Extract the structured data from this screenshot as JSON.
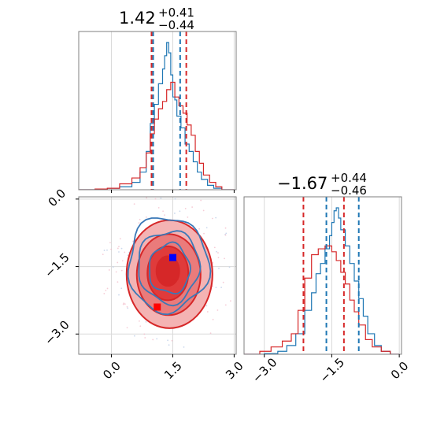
{
  "chart_data": [
    {
      "type": "histogram",
      "panel": "marginal-x",
      "title": {
        "value": "1.42",
        "plus": "+0.41",
        "minus": "−0.44"
      },
      "xlim": [
        -0.8,
        3.05
      ],
      "series": [
        {
          "color": "#1f77b4",
          "bins": [
            -0.8,
            -0.4,
            -0.1,
            0.2,
            0.5,
            0.7,
            0.85,
            0.95,
            1.05,
            1.15,
            1.25,
            1.3,
            1.35,
            1.4,
            1.45,
            1.5,
            1.55,
            1.6,
            1.7,
            1.8,
            1.9,
            2.0,
            2.1,
            2.2,
            2.35,
            2.5,
            2.7,
            3.0
          ],
          "counts": [
            0.0,
            0.005,
            0.01,
            0.02,
            0.05,
            0.12,
            0.26,
            0.45,
            0.58,
            0.72,
            0.82,
            0.91,
            1.0,
            0.93,
            0.78,
            0.63,
            0.61,
            0.5,
            0.42,
            0.31,
            0.26,
            0.19,
            0.12,
            0.07,
            0.03,
            0.01,
            0.0
          ]
        },
        {
          "color": "#d62728",
          "bins": [
            -0.8,
            -0.4,
            -0.1,
            0.2,
            0.5,
            0.7,
            0.85,
            0.95,
            1.05,
            1.15,
            1.25,
            1.35,
            1.45,
            1.55,
            1.65,
            1.75,
            1.85,
            1.95,
            2.05,
            2.15,
            2.25,
            2.4,
            2.55,
            2.7,
            3.0
          ],
          "counts": [
            0.0,
            0.005,
            0.01,
            0.04,
            0.08,
            0.15,
            0.25,
            0.38,
            0.48,
            0.55,
            0.6,
            0.68,
            0.73,
            0.63,
            0.57,
            0.52,
            0.44,
            0.37,
            0.26,
            0.18,
            0.1,
            0.05,
            0.02,
            0.0
          ]
        }
      ],
      "vlines": [
        {
          "x": 0.98,
          "color": "#d62728"
        },
        {
          "x": 1.02,
          "color": "#1f77b4"
        },
        {
          "x": 1.68,
          "color": "#1f77b4"
        },
        {
          "x": 1.83,
          "color": "#d62728"
        }
      ]
    },
    {
      "type": "contour",
      "panel": "joint",
      "xlim": [
        -0.8,
        3.05
      ],
      "ylim": [
        -3.45,
        0.05
      ],
      "xticks": [
        "0.0",
        "1.5",
        "3.0"
      ],
      "yticks": [
        "0.0",
        "−1.5",
        "−3.0"
      ],
      "xtick_values": [
        0.0,
        1.5,
        3.0
      ],
      "ytick_values": [
        0.0,
        -1.5,
        -3.0
      ],
      "grid": true,
      "red_levels": [
        {
          "cx": 1.42,
          "cy": -1.67,
          "rx": 1.05,
          "ry": 1.2,
          "fill": "#f4b3b3"
        },
        {
          "cx": 1.4,
          "cy": -1.68,
          "rx": 0.78,
          "ry": 0.9,
          "fill": "#ea7b7b"
        },
        {
          "cx": 1.38,
          "cy": -1.65,
          "rx": 0.5,
          "ry": 0.6,
          "fill": "#e03b3b"
        },
        {
          "cx": 1.38,
          "cy": -1.6,
          "rx": 0.28,
          "ry": 0.33,
          "fill": "#d62728"
        }
      ],
      "blue_levels": [
        {
          "cx": 1.38,
          "cy": -1.45,
          "rx": 0.98,
          "ry": 1.05
        },
        {
          "cx": 1.4,
          "cy": -1.5,
          "rx": 0.75,
          "ry": 0.8
        },
        {
          "cx": 1.42,
          "cy": -1.55,
          "rx": 0.5,
          "ry": 0.55
        }
      ],
      "markers": [
        {
          "x": 1.5,
          "y": -1.3,
          "color": "#0000ff"
        },
        {
          "x": 1.55,
          "y": -1.72,
          "color": "#d62728"
        },
        {
          "x": 1.12,
          "y": -2.4,
          "color": "#ff0000"
        }
      ]
    },
    {
      "type": "histogram",
      "panel": "marginal-y",
      "title": {
        "value": "−1.67",
        "plus": "+0.44",
        "minus": "−0.46"
      },
      "xlim": [
        -3.45,
        0.05
      ],
      "xticks": [
        "−3.0",
        "−1.5",
        "0.0"
      ],
      "xtick_values": [
        -3.0,
        -1.5,
        0.0
      ],
      "series": [
        {
          "color": "#1f77b4",
          "bins": [
            -3.45,
            -3.0,
            -2.7,
            -2.5,
            -2.3,
            -2.1,
            -1.95,
            -1.85,
            -1.75,
            -1.65,
            -1.55,
            -1.5,
            -1.45,
            -1.4,
            -1.35,
            -1.3,
            -1.2,
            -1.1,
            -1.0,
            -0.9,
            -0.8,
            -0.7,
            -0.55,
            -0.4,
            -0.2,
            0.0
          ],
          "counts": [
            0.0,
            0.005,
            0.02,
            0.06,
            0.14,
            0.3,
            0.42,
            0.55,
            0.62,
            0.72,
            0.81,
            0.9,
            0.98,
            1.0,
            0.93,
            0.85,
            0.74,
            0.62,
            0.5,
            0.38,
            0.26,
            0.14,
            0.06,
            0.02,
            0.0
          ]
        },
        {
          "color": "#d62728",
          "bins": [
            -3.45,
            -3.1,
            -2.85,
            -2.6,
            -2.4,
            -2.25,
            -2.1,
            -1.95,
            -1.8,
            -1.65,
            -1.5,
            -1.4,
            -1.3,
            -1.2,
            -1.1,
            -1.0,
            -0.9,
            -0.75,
            -0.6,
            -0.4,
            -0.2,
            0.0
          ],
          "counts": [
            0.0,
            0.02,
            0.05,
            0.09,
            0.14,
            0.3,
            0.52,
            0.68,
            0.72,
            0.74,
            0.7,
            0.64,
            0.56,
            0.48,
            0.37,
            0.29,
            0.2,
            0.1,
            0.05,
            0.02,
            0.0
          ]
        }
      ],
      "vlines": [
        {
          "x": -2.13,
          "color": "#d62728"
        },
        {
          "x": -1.62,
          "color": "#1f77b4"
        },
        {
          "x": -1.23,
          "color": "#d62728"
        },
        {
          "x": -0.9,
          "color": "#1f77b4"
        }
      ]
    }
  ],
  "colors": {
    "blue": "#1f77b4",
    "red": "#d62728",
    "grid": "#d9d9d9",
    "axis": "#7f7f7f"
  }
}
